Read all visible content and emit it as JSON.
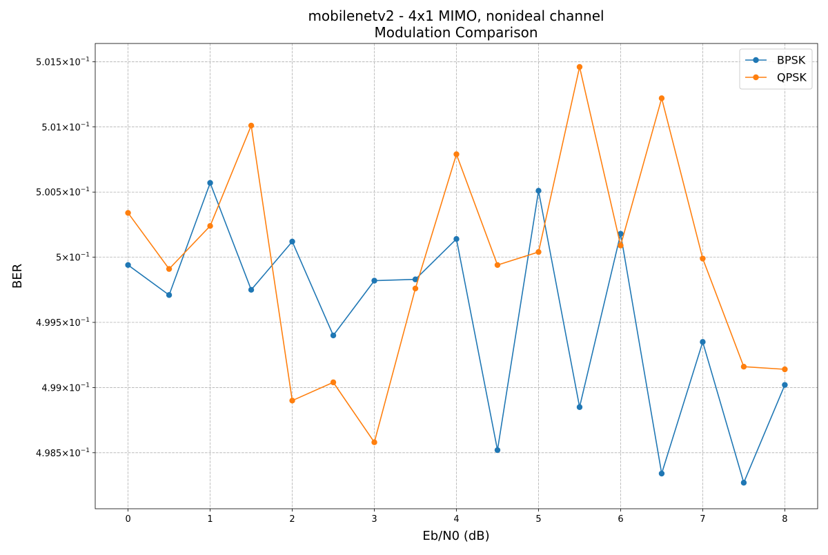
{
  "chart_data": {
    "type": "line",
    "title": "mobilenetv2 - 4x1 MIMO, nonideal channel",
    "subtitle": "Modulation Comparison",
    "xlabel": "Eb/N0 (dB)",
    "ylabel": "BER",
    "xlim": [
      -0.4,
      8.4
    ],
    "ylim": [
      0.49807,
      0.50164
    ],
    "x_ticks": [
      0,
      1,
      2,
      3,
      4,
      5,
      6,
      7,
      8
    ],
    "x_tick_labels": [
      "0",
      "1",
      "2",
      "3",
      "4",
      "5",
      "6",
      "7",
      "8"
    ],
    "y_ticks": [
      {
        "value": 0.4985,
        "mantissa": "4.985",
        "exponent": "−1"
      },
      {
        "value": 0.499,
        "mantissa": "4.99",
        "exponent": "−1"
      },
      {
        "value": 0.4995,
        "mantissa": "4.995",
        "exponent": "−1"
      },
      {
        "value": 0.5,
        "mantissa": "5",
        "exponent": "−1"
      },
      {
        "value": 0.5005,
        "mantissa": "5.005",
        "exponent": "−1"
      },
      {
        "value": 0.501,
        "mantissa": "5.01",
        "exponent": "−1"
      },
      {
        "value": 0.5015,
        "mantissa": "5.015",
        "exponent": "−1"
      }
    ],
    "y_tick_times": "×",
    "y_tick_base": "10",
    "grid": true,
    "legend_position": "top-right",
    "x": [
      0,
      0.5,
      1,
      1.5,
      2,
      2.5,
      3,
      3.5,
      4,
      4.5,
      5,
      5.5,
      6,
      6.5,
      7,
      7.5,
      8
    ],
    "series": [
      {
        "name": "BPSK",
        "color": "#1f77b4",
        "values": [
          0.49994,
          0.49971,
          0.50057,
          0.49975,
          0.50012,
          0.4994,
          0.49982,
          0.49983,
          0.50014,
          0.49852,
          0.50051,
          0.49885,
          0.50018,
          0.49834,
          0.49935,
          0.49827,
          0.49902
        ]
      },
      {
        "name": "QPSK",
        "color": "#ff7f0e",
        "values": [
          0.50034,
          0.49991,
          0.50024,
          0.50101,
          0.4989,
          0.49904,
          0.49858,
          0.49976,
          0.50079,
          0.49994,
          0.50004,
          0.50146,
          0.50009,
          0.50122,
          0.49999,
          0.49916,
          0.49914
        ]
      }
    ]
  }
}
